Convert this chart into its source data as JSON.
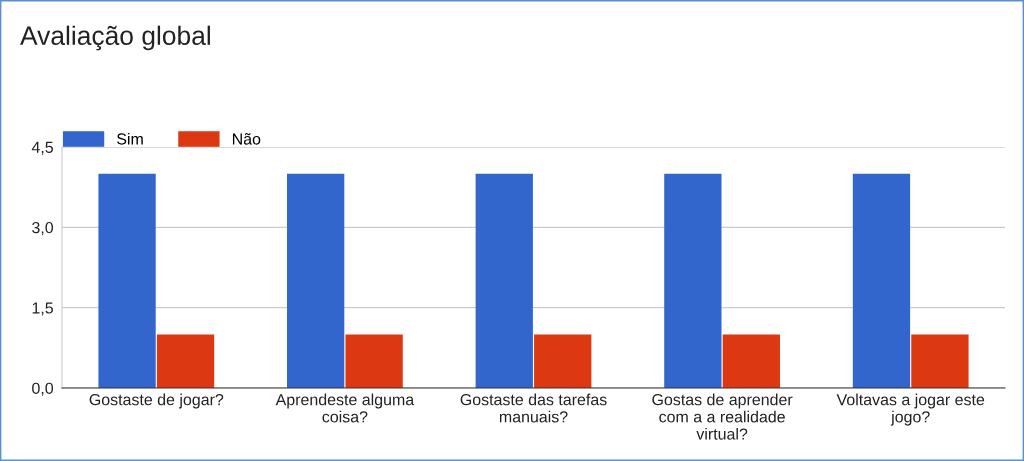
{
  "chart_data": {
    "type": "bar",
    "title": "Avaliação global",
    "categories": [
      "Gostaste de jogar?",
      "Aprendeste alguma\ncoisa?",
      "Gostaste das tarefas\nmanuais?",
      "Gostas de aprender\ncom a a realidade\nvirtual?",
      "Voltavas a jogar este\njogo?"
    ],
    "series": [
      {
        "name": "Sim",
        "color": "#3366cc",
        "values": [
          4,
          4,
          4,
          4,
          4
        ]
      },
      {
        "name": "Não",
        "color": "#dc3912",
        "values": [
          1,
          1,
          1,
          1,
          1
        ]
      }
    ],
    "ylim": [
      0,
      4.5
    ],
    "yticks": [
      {
        "value": 0,
        "label": "0,0"
      },
      {
        "value": 1.5,
        "label": "1,5"
      },
      {
        "value": 3,
        "label": "3,0"
      },
      {
        "value": 4.5,
        "label": "4,5"
      }
    ],
    "grid": "y",
    "legend": "top left"
  }
}
